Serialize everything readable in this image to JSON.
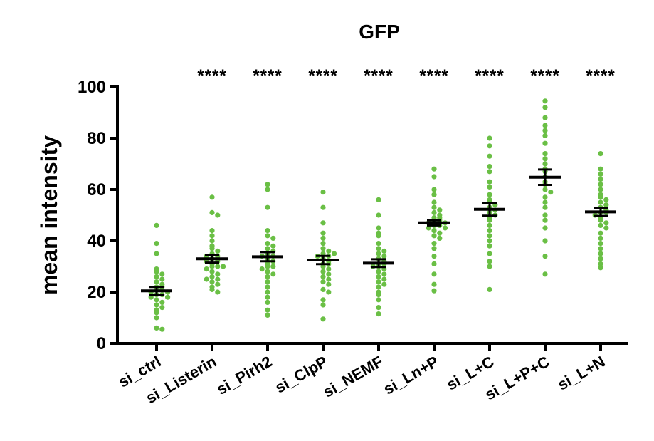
{
  "chart_data": {
    "type": "scatter",
    "title": "GFP",
    "ylabel": "mean intensity",
    "xlabel": "",
    "ylim": [
      0,
      100
    ],
    "yticks": [
      0,
      20,
      40,
      60,
      80,
      100
    ],
    "categories": [
      "si_ctrl",
      "si_Listerin",
      "si_Pirh2",
      "si_ClpP",
      "si_NEMF",
      "si_Ln+P",
      "si_L+C",
      "si_L+P+C",
      "si_L+N"
    ],
    "significance": [
      "",
      "****",
      "****",
      "****",
      "****",
      "****",
      "****",
      "****",
      "****"
    ],
    "point_color": "#6abf45",
    "summary": [
      {
        "mean": 20.5,
        "sem": 1.5
      },
      {
        "mean": 33.0,
        "sem": 1.5
      },
      {
        "mean": 33.8,
        "sem": 1.8
      },
      {
        "mean": 32.5,
        "sem": 1.6
      },
      {
        "mean": 31.3,
        "sem": 1.5
      },
      {
        "mean": 47.0,
        "sem": 1.0
      },
      {
        "mean": 52.3,
        "sem": 2.5
      },
      {
        "mean": 64.8,
        "sem": 3.0
      },
      {
        "mean": 51.3,
        "sem": 1.6
      }
    ],
    "points": [
      [
        46,
        39,
        35,
        29,
        28,
        27,
        26,
        25,
        24,
        23,
        22,
        22,
        21,
        21,
        20,
        20,
        19,
        19,
        18,
        18,
        17,
        16,
        15,
        14,
        13,
        12,
        10,
        6,
        5.5
      ],
      [
        57,
        51,
        50,
        44,
        42,
        40,
        38,
        37,
        36,
        35,
        34,
        34,
        33,
        32,
        32,
        31,
        30,
        30,
        29,
        28,
        27,
        26,
        25,
        25,
        24,
        23,
        22,
        21,
        20,
        30
      ],
      [
        62,
        60,
        53,
        44,
        42,
        41,
        39,
        38,
        37,
        36,
        35,
        34,
        34,
        33,
        32,
        31,
        30,
        30,
        29,
        28,
        27,
        26,
        24,
        22,
        20,
        18,
        16,
        13,
        11
      ],
      [
        59,
        53,
        47,
        43,
        41,
        39,
        37,
        36,
        35,
        34,
        34,
        33,
        32,
        31,
        31,
        30,
        29,
        28,
        27,
        26,
        25,
        24,
        23,
        21,
        20,
        17,
        15,
        9.5,
        35
      ],
      [
        56,
        50,
        45,
        43,
        42,
        39,
        37,
        36,
        35,
        34,
        33,
        32,
        31,
        31,
        30,
        29,
        28,
        27,
        26,
        25,
        24,
        23,
        22,
        20,
        19,
        17,
        14,
        11.5,
        30
      ],
      [
        68,
        65,
        60,
        58,
        55,
        53,
        52,
        51,
        50,
        49,
        49,
        48,
        48,
        47,
        47,
        46,
        46,
        45,
        45,
        44,
        43,
        42,
        41,
        39,
        37,
        34,
        31,
        27,
        23,
        20.5
      ],
      [
        80,
        77,
        73,
        69,
        67,
        63,
        61,
        58,
        56,
        55,
        54,
        53,
        52,
        51,
        50,
        49,
        48,
        46,
        44,
        42,
        40,
        38,
        35,
        32,
        30,
        21
      ],
      [
        94.5,
        92,
        88,
        85,
        83,
        81,
        78,
        74,
        72,
        70,
        68,
        67,
        65,
        63,
        62,
        60,
        59,
        57,
        55,
        53,
        50,
        48,
        45,
        40,
        34,
        27
      ],
      [
        74,
        68,
        66,
        64,
        62,
        60,
        58,
        57,
        56,
        55,
        54,
        53,
        52,
        51,
        51,
        50,
        49,
        48,
        47,
        46,
        45,
        43,
        41,
        39,
        37,
        35,
        33,
        31,
        29.5
      ]
    ]
  }
}
